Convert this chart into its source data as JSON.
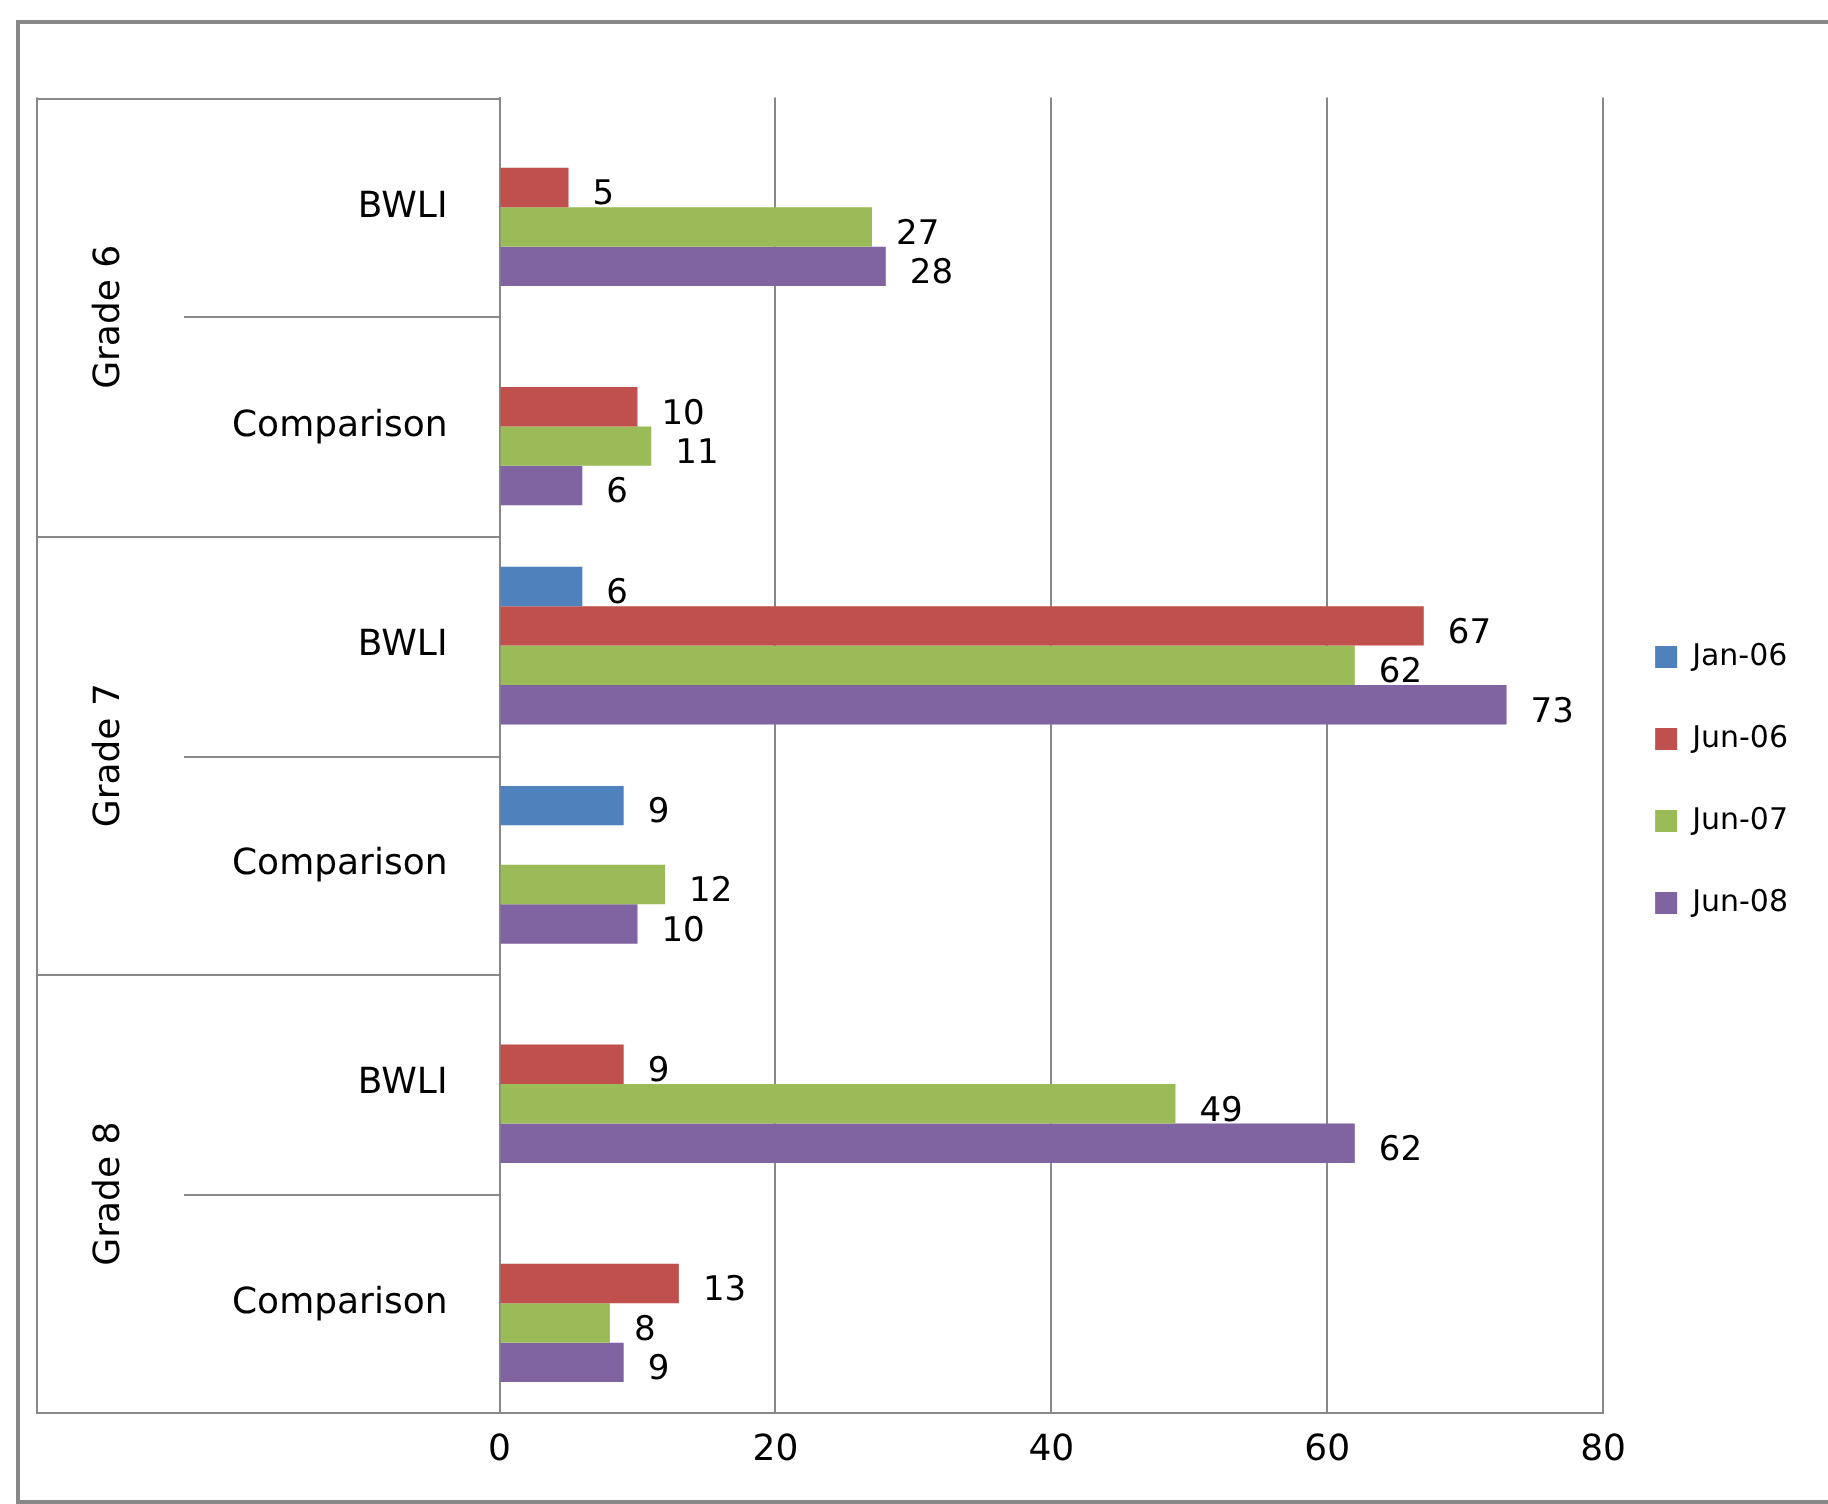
{
  "chart_data": {
    "type": "bar",
    "orientation": "horizontal",
    "categories": [
      "BWLI",
      "Comparison",
      "BWLI",
      "Comparison",
      "BWLI",
      "Comparison"
    ],
    "annotations": [
      "Grade 6",
      "Grade 7",
      "Grade 8"
    ],
    "series": [
      {
        "name": "Jan-06",
        "color": "#4f81bd",
        "values": [
          null,
          null,
          6,
          9,
          null,
          null
        ]
      },
      {
        "name": "Jun-06",
        "color": "#c0504d",
        "values": [
          5,
          10,
          67,
          null,
          9,
          13
        ]
      },
      {
        "name": "Jun-07",
        "color": "#9bbb59",
        "values": [
          27,
          11,
          62,
          12,
          49,
          8
        ]
      },
      {
        "name": "Jun-08",
        "color": "#8064a2",
        "values": [
          28,
          6,
          73,
          10,
          62,
          9
        ]
      }
    ],
    "xlim": [
      0,
      80
    ],
    "xticks": [
      0,
      20,
      40,
      60,
      80
    ],
    "grid": "x",
    "legend": "right",
    "data_labels": true
  }
}
